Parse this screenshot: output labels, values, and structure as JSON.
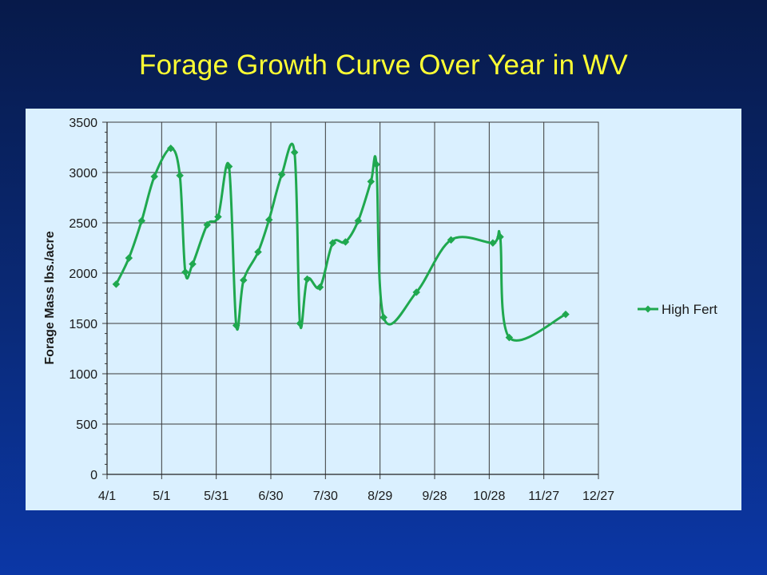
{
  "slide": {
    "title": "Forage Growth Curve Over Year in WV"
  },
  "chart_data": {
    "type": "line",
    "title": "",
    "xlabel": "",
    "ylabel": "Forage Mass lbs./acre",
    "x_tick_labels": [
      "4/1",
      "5/1",
      "5/31",
      "6/30",
      "7/30",
      "8/29",
      "9/28",
      "10/28",
      "11/27",
      "12/27"
    ],
    "x_tick_days": [
      0,
      30,
      60,
      90,
      120,
      150,
      180,
      210,
      240,
      270
    ],
    "xlim": [
      0,
      270
    ],
    "ylim": [
      0,
      3500
    ],
    "y_ticks": [
      0,
      500,
      1000,
      1500,
      2000,
      2500,
      3000,
      3500
    ],
    "grid": true,
    "legend_position": "right",
    "series": [
      {
        "name": "High Fert",
        "color": "#1fa84f",
        "points": [
          {
            "x": 5,
            "y": 1890
          },
          {
            "x": 12,
            "y": 2150
          },
          {
            "x": 19,
            "y": 2520
          },
          {
            "x": 26,
            "y": 2960
          },
          {
            "x": 35,
            "y": 3240
          },
          {
            "x": 40,
            "y": 2970
          },
          {
            "x": 43,
            "y": 2010
          },
          {
            "x": 47,
            "y": 2090
          },
          {
            "x": 55,
            "y": 2480
          },
          {
            "x": 61,
            "y": 2560
          },
          {
            "x": 67,
            "y": 3060
          },
          {
            "x": 71,
            "y": 1480
          },
          {
            "x": 75,
            "y": 1930
          },
          {
            "x": 83,
            "y": 2210
          },
          {
            "x": 89,
            "y": 2530
          },
          {
            "x": 96,
            "y": 2980
          },
          {
            "x": 103,
            "y": 3200
          },
          {
            "x": 106,
            "y": 1500
          },
          {
            "x": 110,
            "y": 1940
          },
          {
            "x": 117,
            "y": 1860
          },
          {
            "x": 124,
            "y": 2300
          },
          {
            "x": 131,
            "y": 2310
          },
          {
            "x": 138,
            "y": 2520
          },
          {
            "x": 145,
            "y": 2910
          },
          {
            "x": 148,
            "y": 3080
          },
          {
            "x": 152,
            "y": 1560
          },
          {
            "x": 170,
            "y": 1810
          },
          {
            "x": 189,
            "y": 2330
          },
          {
            "x": 212,
            "y": 2300
          },
          {
            "x": 216,
            "y": 2360
          },
          {
            "x": 221,
            "y": 1360
          },
          {
            "x": 252,
            "y": 1590
          }
        ]
      }
    ]
  }
}
